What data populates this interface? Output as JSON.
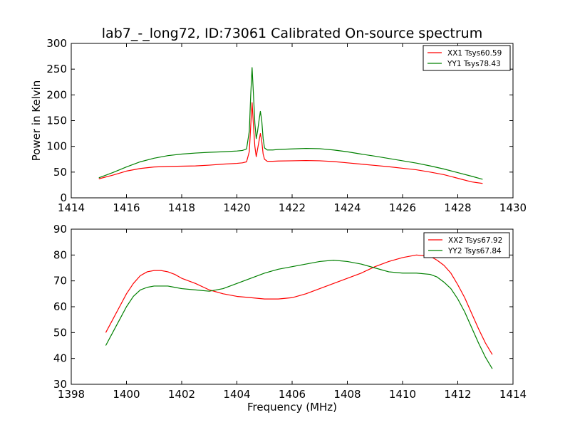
{
  "title": "lab7_-_long72, ID:73061 Calibrated On-source spectrum",
  "chart_data": [
    {
      "type": "line",
      "ylabel": "Power in Kelvin",
      "xlabel": "",
      "xlim": [
        1414,
        1430
      ],
      "ylim": [
        0,
        300
      ],
      "xticks": [
        1414,
        1416,
        1418,
        1420,
        1422,
        1424,
        1426,
        1428,
        1430
      ],
      "yticks": [
        0,
        50,
        100,
        150,
        200,
        250,
        300
      ],
      "legend": "top-right",
      "grid": false,
      "series": [
        {
          "name": "XX1 Tsys60.59",
          "color": "#ff0000",
          "x": [
            1415.0,
            1415.5,
            1416.0,
            1416.5,
            1417.0,
            1417.5,
            1418.0,
            1418.5,
            1419.0,
            1419.5,
            1420.0,
            1420.2,
            1420.35,
            1420.45,
            1420.5,
            1420.55,
            1420.6,
            1420.65,
            1420.7,
            1420.75,
            1420.8,
            1420.85,
            1420.9,
            1420.95,
            1421.0,
            1421.1,
            1421.3,
            1421.5,
            1422.0,
            1422.5,
            1423.0,
            1423.5,
            1424.0,
            1424.5,
            1425.0,
            1425.5,
            1426.0,
            1426.5,
            1427.0,
            1427.5,
            1428.0,
            1428.5,
            1428.9
          ],
          "y": [
            37,
            44,
            52,
            57,
            60,
            61,
            61.5,
            62,
            63.5,
            65.5,
            67,
            68,
            70,
            90,
            140,
            185,
            140,
            100,
            80,
            95,
            110,
            125,
            110,
            85,
            75,
            71,
            71,
            71.5,
            72,
            72.5,
            72,
            70.5,
            68,
            65.5,
            63,
            60.5,
            57.5,
            54.5,
            50,
            45,
            38,
            31,
            28
          ]
        },
        {
          "name": "YY1 Tsys78.43",
          "color": "#008000",
          "x": [
            1415.0,
            1415.5,
            1416.0,
            1416.5,
            1417.0,
            1417.5,
            1418.0,
            1418.5,
            1419.0,
            1419.5,
            1420.0,
            1420.2,
            1420.35,
            1420.45,
            1420.5,
            1420.55,
            1420.6,
            1420.65,
            1420.7,
            1420.75,
            1420.8,
            1420.85,
            1420.9,
            1420.95,
            1421.0,
            1421.1,
            1421.3,
            1421.5,
            1422.0,
            1422.5,
            1423.0,
            1423.5,
            1424.0,
            1424.5,
            1425.0,
            1425.5,
            1426.0,
            1426.5,
            1427.0,
            1427.5,
            1428.0,
            1428.5,
            1428.9
          ],
          "y": [
            39,
            49,
            60,
            70,
            77,
            82,
            85,
            87,
            88.5,
            89.5,
            91,
            92,
            95,
            130,
            200,
            253,
            200,
            145,
            115,
            130,
            150,
            168,
            150,
            115,
            97,
            93,
            93,
            94,
            95,
            96,
            95.5,
            93,
            89.5,
            85,
            81,
            76.5,
            72,
            67.5,
            62,
            56,
            49,
            42,
            36
          ]
        }
      ]
    },
    {
      "type": "line",
      "ylabel": "",
      "xlabel": "Frequency (MHz)",
      "xlim": [
        1398,
        1414
      ],
      "ylim": [
        30,
        90
      ],
      "xticks": [
        1398,
        1400,
        1402,
        1404,
        1406,
        1408,
        1410,
        1412,
        1414
      ],
      "yticks": [
        30,
        40,
        50,
        60,
        70,
        80,
        90
      ],
      "legend": "top-right",
      "grid": false,
      "series": [
        {
          "name": "XX2 Tsys67.92",
          "color": "#ff0000",
          "x": [
            1399.25,
            1399.5,
            1399.75,
            1400.0,
            1400.25,
            1400.5,
            1400.75,
            1401.0,
            1401.25,
            1401.5,
            1401.75,
            1402.0,
            1402.5,
            1403.0,
            1403.5,
            1404.0,
            1404.5,
            1405.0,
            1405.5,
            1406.0,
            1406.5,
            1407.0,
            1407.5,
            1408.0,
            1408.5,
            1409.0,
            1409.5,
            1410.0,
            1410.5,
            1411.0,
            1411.25,
            1411.5,
            1411.75,
            1412.0,
            1412.25,
            1412.5,
            1412.75,
            1413.0,
            1413.25
          ],
          "y": [
            50,
            55,
            60,
            65,
            69,
            72,
            73.5,
            74,
            74,
            73.5,
            72.5,
            71,
            69,
            66.5,
            65,
            64,
            63.5,
            63,
            63,
            63.5,
            65,
            67,
            69,
            71,
            73,
            75.5,
            77.5,
            79,
            80,
            79.5,
            78,
            76,
            73,
            68.5,
            63.5,
            57.5,
            51.5,
            46,
            41.5
          ]
        },
        {
          "name": "YY2 Tsys67.84",
          "color": "#008000",
          "x": [
            1399.25,
            1399.5,
            1399.75,
            1400.0,
            1400.25,
            1400.5,
            1400.75,
            1401.0,
            1401.25,
            1401.5,
            1401.75,
            1402.0,
            1402.5,
            1403.0,
            1403.5,
            1404.0,
            1404.5,
            1405.0,
            1405.5,
            1406.0,
            1406.5,
            1407.0,
            1407.5,
            1408.0,
            1408.5,
            1409.0,
            1409.5,
            1410.0,
            1410.5,
            1411.0,
            1411.25,
            1411.5,
            1411.75,
            1412.0,
            1412.25,
            1412.5,
            1412.75,
            1413.0,
            1413.25
          ],
          "y": [
            45,
            50,
            55,
            60,
            64,
            66.5,
            67.5,
            68,
            68,
            68,
            67.5,
            67,
            66.5,
            66,
            67,
            69,
            71,
            73,
            74.5,
            75.5,
            76.5,
            77.5,
            78,
            77.5,
            76.5,
            75,
            73.5,
            73,
            73,
            72.5,
            71.5,
            69.5,
            67,
            63,
            58,
            52,
            46,
            40.5,
            36
          ]
        }
      ]
    }
  ]
}
